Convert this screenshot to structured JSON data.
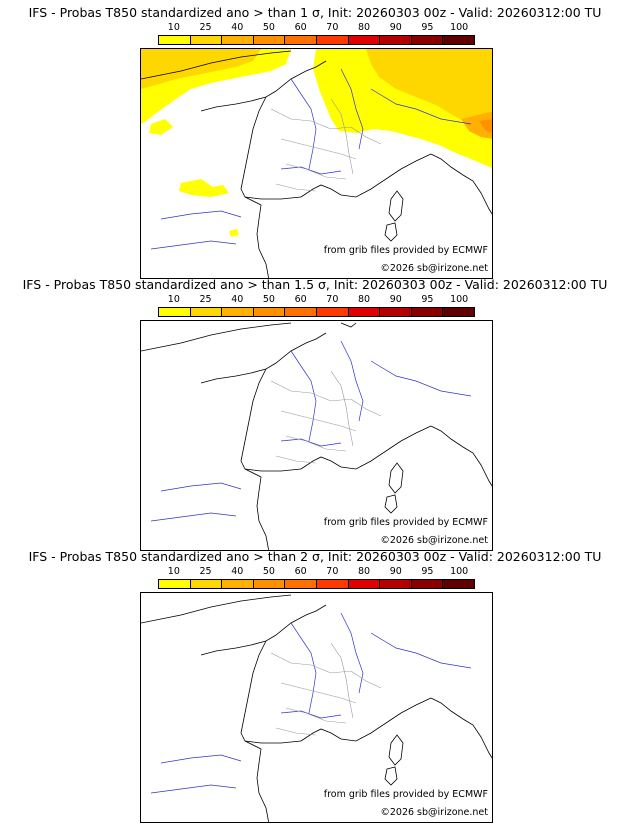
{
  "colorbar": {
    "ticks": [
      "10",
      "25",
      "40",
      "50",
      "60",
      "70",
      "80",
      "90",
      "95",
      "100"
    ],
    "colors": [
      "#ffff00",
      "#ffd700",
      "#ffb000",
      "#ff9000",
      "#ff7000",
      "#ff3a00",
      "#e00000",
      "#b40000",
      "#8a0000",
      "#600000"
    ]
  },
  "panels": [
    {
      "title": "IFS - Probas T850  standardized ano > than 1 σ, Init: 20260303 00z - Valid: 20260312:00 TU",
      "credit": "from grib files provided by ECMWF",
      "copyright": "©2026 sb@irizone.net"
    },
    {
      "title": "IFS - Probas T850  standardized ano > than 1.5 σ, Init: 20260303 00z - Valid: 20260312:00 TU",
      "credit": "from grib files provided by ECMWF",
      "copyright": "©2026 sb@irizone.net"
    },
    {
      "title": "IFS - Probas T850  standardized ano > than 2 σ, Init: 20260303 00z - Valid: 20260312:00 TU",
      "credit": "from grib files provided by ECMWF",
      "copyright": "©2026 sb@irizone.net"
    }
  ]
}
